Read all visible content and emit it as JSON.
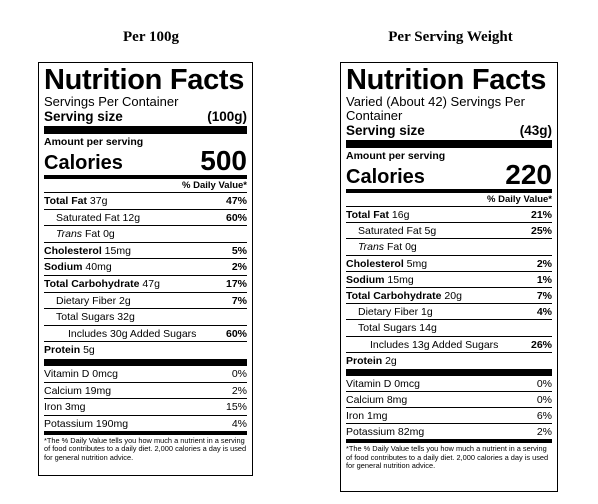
{
  "left": {
    "heading": "Per 100g",
    "title": "Nutrition Facts",
    "servings_line": "Servings Per Container",
    "serving_size_label": "Serving size",
    "serving_size_value": "(100g)",
    "amount_per_serving": "Amount per serving",
    "calories_label": "Calories",
    "calories_value": "500",
    "dv_header": "% Daily Value*",
    "rows": [
      {
        "label_bold": "Total Fat",
        "label": " 37g",
        "pct": "47%"
      },
      {
        "label": "Saturated Fat 12g",
        "pct": "60%"
      },
      {
        "label_italic": "Trans",
        "label": " Fat 0g",
        "pct": ""
      },
      {
        "label_bold": "Cholesterol",
        "label": " 15mg",
        "pct": "5%"
      },
      {
        "label_bold": "Sodium",
        "label": " 40mg",
        "pct": "2%"
      },
      {
        "label_bold": "Total Carbohydrate",
        "label": " 47g",
        "pct": "17%"
      },
      {
        "label": "Dietary Fiber 2g",
        "pct": "7%"
      },
      {
        "label": "Total Sugars 32g",
        "pct": ""
      },
      {
        "label": "Includes 30g Added Sugars",
        "pct": "60%"
      },
      {
        "label_bold": "Protein",
        "label": " 5g",
        "pct": ""
      }
    ],
    "vitamins": [
      {
        "label": "Vitamin D 0mcg",
        "pct": "0%"
      },
      {
        "label": "Calcium 19mg",
        "pct": "2%"
      },
      {
        "label": "Iron 3mg",
        "pct": "15%"
      },
      {
        "label": "Potassium 190mg",
        "pct": "4%"
      }
    ],
    "footnote": "*The % Daily Value tells you how much a nutrient in a serving of food contributes to a daily diet. 2,000 calories a day is used for general nutrition advice."
  },
  "right": {
    "heading": "Per Serving Weight",
    "title": "Nutrition Facts",
    "servings_line": "Varied (About 42) Servings Per Container",
    "serving_size_label": "Serving size",
    "serving_size_value": "(43g)",
    "amount_per_serving": "Amount per serving",
    "calories_label": "Calories",
    "calories_value": "220",
    "dv_header": "% Daily Value*",
    "rows": [
      {
        "label_bold": "Total Fat",
        "label": " 16g",
        "pct": "21%"
      },
      {
        "label": "Saturated Fat 5g",
        "pct": "25%"
      },
      {
        "label_italic": "Trans",
        "label": " Fat 0g",
        "pct": ""
      },
      {
        "label_bold": "Cholesterol",
        "label": " 5mg",
        "pct": "2%"
      },
      {
        "label_bold": "Sodium",
        "label": " 15mg",
        "pct": "1%"
      },
      {
        "label_bold": "Total Carbohydrate",
        "label": " 20g",
        "pct": "7%"
      },
      {
        "label": "Dietary Fiber 1g",
        "pct": "4%"
      },
      {
        "label": "Total Sugars 14g",
        "pct": ""
      },
      {
        "label": "Includes 13g Added Sugars",
        "pct": "26%"
      },
      {
        "label_bold": "Protein",
        "label": " 2g",
        "pct": ""
      }
    ],
    "vitamins": [
      {
        "label": "Vitamin D 0mcg",
        "pct": "0%"
      },
      {
        "label": "Calcium 8mg",
        "pct": "0%"
      },
      {
        "label": "Iron 1mg",
        "pct": "6%"
      },
      {
        "label": "Potassium 82mg",
        "pct": "2%"
      }
    ],
    "footnote": "*The % Daily Value tells you how much a nutrient in a serving of food contributes to a daily diet. 2,000 calories a day is used for general nutrition advice."
  }
}
